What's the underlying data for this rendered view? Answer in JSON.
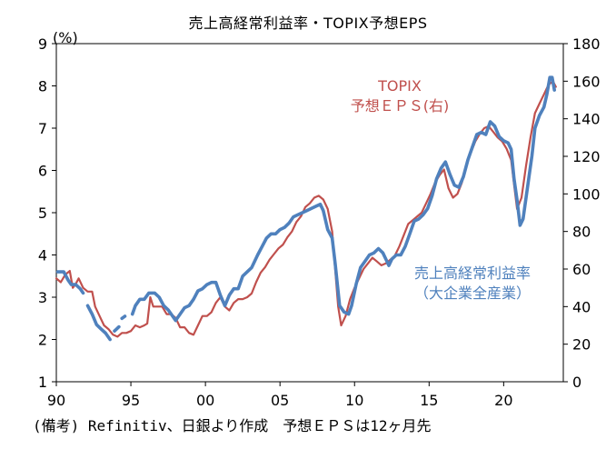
{
  "title": "売上高経常利益率・TOPIX予想EPS",
  "note": "(備考) Refinitiv、日銀より作成　予想ＥＰＳは12ヶ月先",
  "colors": {
    "profit": "#4f81bd",
    "eps": "#c0504d",
    "axis": "#000000"
  },
  "chart_data": {
    "type": "line",
    "title": "売上高経常利益率・TOPIX予想EPS",
    "ylabel_left": "(%)",
    "y_left_range": [
      1,
      9
    ],
    "y_left_ticks": [
      "1",
      "2",
      "3",
      "4",
      "5",
      "6",
      "7",
      "8",
      "9"
    ],
    "y_right_range": [
      0,
      180
    ],
    "y_right_ticks": [
      "0",
      "20",
      "40",
      "60",
      "80",
      "100",
      "120",
      "140",
      "160",
      "180"
    ],
    "x_range": [
      1990,
      2024
    ],
    "x_ticks": [
      {
        "value": 1990,
        "label": "90"
      },
      {
        "value": 1995,
        "label": "95"
      },
      {
        "value": 2000,
        "label": "00"
      },
      {
        "value": 2005,
        "label": "05"
      },
      {
        "value": 2010,
        "label": "10"
      },
      {
        "value": 2015,
        "label": "15"
      },
      {
        "value": 2020,
        "label": "20"
      }
    ],
    "series": [
      {
        "name": "売上高経常利益率(大企業全産業)",
        "label_line1": "売上高経常利益率",
        "label_line2": "（大企業全産業）",
        "axis": "left",
        "segments": [
          [
            [
              1990.1,
              3.6
            ],
            [
              1990.5,
              3.6
            ],
            [
              1990.8,
              3.4
            ],
            [
              1991.0,
              3.3
            ],
            [
              1991.3,
              3.3
            ],
            [
              1991.6,
              3.2
            ],
            [
              1991.8,
              3.1
            ]
          ],
          [
            [
              1992.1,
              2.8
            ],
            [
              1992.4,
              2.6
            ],
            [
              1992.7,
              2.35
            ],
            [
              1993.0,
              2.25
            ],
            [
              1993.3,
              2.15
            ],
            [
              1993.6,
              2.0
            ]
          ],
          [
            [
              1993.9,
              2.2
            ],
            [
              1994.2,
              2.3
            ]
          ],
          [
            [
              1994.4,
              2.5
            ],
            [
              1994.6,
              2.55
            ]
          ],
          [
            [
              1995.1,
              2.6
            ],
            [
              1995.3,
              2.8
            ],
            [
              1995.6,
              2.95
            ],
            [
              1995.9,
              2.95
            ],
            [
              1996.2,
              3.1
            ],
            [
              1996.6,
              3.1
            ],
            [
              1996.9,
              3.0
            ],
            [
              1997.2,
              2.8
            ],
            [
              1997.5,
              2.7
            ],
            [
              1997.8,
              2.55
            ],
            [
              1998.0,
              2.45
            ],
            [
              1998.3,
              2.6
            ],
            [
              1998.6,
              2.75
            ],
            [
              1998.9,
              2.8
            ],
            [
              1999.2,
              2.95
            ],
            [
              1999.5,
              3.15
            ],
            [
              1999.8,
              3.2
            ],
            [
              2000.1,
              3.3
            ],
            [
              2000.4,
              3.35
            ],
            [
              2000.7,
              3.35
            ],
            [
              2001.0,
              3.05
            ],
            [
              2001.3,
              2.8
            ],
            [
              2001.6,
              3.05
            ],
            [
              2001.9,
              3.2
            ],
            [
              2002.2,
              3.2
            ],
            [
              2002.5,
              3.5
            ],
            [
              2002.8,
              3.6
            ],
            [
              2003.1,
              3.7
            ],
            [
              2003.5,
              4.0
            ],
            [
              2003.8,
              4.2
            ],
            [
              2004.1,
              4.4
            ],
            [
              2004.4,
              4.5
            ],
            [
              2004.7,
              4.5
            ],
            [
              2005.0,
              4.6
            ],
            [
              2005.3,
              4.65
            ],
            [
              2005.6,
              4.75
            ],
            [
              2005.9,
              4.9
            ],
            [
              2006.2,
              4.95
            ],
            [
              2006.5,
              5.0
            ],
            [
              2006.8,
              5.05
            ],
            [
              2007.1,
              5.1
            ],
            [
              2007.4,
              5.15
            ],
            [
              2007.7,
              5.2
            ],
            [
              2007.9,
              5.05
            ],
            [
              2008.2,
              4.6
            ],
            [
              2008.5,
              4.4
            ],
            [
              2008.7,
              3.8
            ],
            [
              2009.0,
              2.8
            ],
            [
              2009.3,
              2.65
            ],
            [
              2009.6,
              2.6
            ],
            [
              2009.8,
              2.8
            ],
            [
              2010.1,
              3.3
            ],
            [
              2010.4,
              3.7
            ],
            [
              2010.7,
              3.85
            ],
            [
              2011.0,
              4.0
            ],
            [
              2011.3,
              4.05
            ],
            [
              2011.6,
              4.15
            ],
            [
              2011.9,
              4.05
            ],
            [
              2012.1,
              3.9
            ],
            [
              2012.3,
              3.75
            ],
            [
              2012.5,
              3.9
            ],
            [
              2012.8,
              4.0
            ],
            [
              2013.1,
              4.0
            ],
            [
              2013.4,
              4.2
            ],
            [
              2013.7,
              4.5
            ],
            [
              2014.0,
              4.8
            ],
            [
              2014.3,
              4.85
            ],
            [
              2014.6,
              4.95
            ],
            [
              2014.9,
              5.1
            ],
            [
              2015.2,
              5.4
            ],
            [
              2015.5,
              5.8
            ],
            [
              2015.8,
              6.05
            ],
            [
              2016.1,
              6.2
            ],
            [
              2016.4,
              5.9
            ],
            [
              2016.7,
              5.65
            ],
            [
              2017.0,
              5.6
            ],
            [
              2017.3,
              5.85
            ],
            [
              2017.6,
              6.25
            ],
            [
              2017.9,
              6.55
            ],
            [
              2018.2,
              6.85
            ],
            [
              2018.5,
              6.9
            ],
            [
              2018.8,
              6.85
            ],
            [
              2019.1,
              7.15
            ],
            [
              2019.4,
              7.05
            ],
            [
              2019.7,
              6.8
            ],
            [
              2020.0,
              6.7
            ],
            [
              2020.3,
              6.65
            ],
            [
              2020.5,
              6.5
            ],
            [
              2020.7,
              5.8
            ],
            [
              2020.9,
              5.3
            ],
            [
              2021.1,
              4.7
            ],
            [
              2021.3,
              4.85
            ],
            [
              2021.6,
              5.6
            ],
            [
              2021.9,
              6.35
            ],
            [
              2022.1,
              7.0
            ],
            [
              2022.4,
              7.3
            ],
            [
              2022.7,
              7.5
            ],
            [
              2022.9,
              7.8
            ],
            [
              2023.1,
              8.2
            ],
            [
              2023.25,
              8.2
            ],
            [
              2023.4,
              7.9
            ]
          ]
        ]
      },
      {
        "name": "TOPIX予想EPS(右)",
        "label_line1": "TOPIX",
        "label_line2": "予想ＥＰＳ(右)",
        "axis": "right",
        "segments": [
          [
            [
              1990.0,
              55
            ],
            [
              1990.3,
              53
            ],
            [
              1990.6,
              57
            ],
            [
              1990.9,
              59
            ],
            [
              1991.1,
              50
            ],
            [
              1991.3,
              52
            ],
            [
              1991.5,
              55
            ],
            [
              1991.8,
              50
            ],
            [
              1992.1,
              48
            ],
            [
              1992.4,
              48
            ],
            [
              1992.6,
              40
            ],
            [
              1992.9,
              35
            ],
            [
              1993.2,
              30
            ],
            [
              1993.5,
              28
            ],
            [
              1993.8,
              25
            ],
            [
              1994.1,
              24
            ],
            [
              1994.4,
              26
            ],
            [
              1994.7,
              26
            ],
            [
              1995.0,
              27
            ],
            [
              1995.3,
              30
            ],
            [
              1995.6,
              29
            ],
            [
              1995.9,
              30
            ],
            [
              1996.1,
              31
            ],
            [
              1996.3,
              45
            ],
            [
              1996.5,
              40
            ],
            [
              1996.8,
              40
            ],
            [
              1997.1,
              40
            ],
            [
              1997.4,
              36
            ],
            [
              1997.7,
              36
            ],
            [
              1998.0,
              34
            ],
            [
              1998.3,
              29
            ],
            [
              1998.6,
              29
            ],
            [
              1998.9,
              26
            ],
            [
              1999.2,
              25
            ],
            [
              1999.5,
              30
            ],
            [
              1999.8,
              35
            ],
            [
              2000.1,
              35
            ],
            [
              2000.4,
              37
            ],
            [
              2000.7,
              42
            ],
            [
              2001.0,
              45
            ],
            [
              2001.3,
              40
            ],
            [
              2001.6,
              38
            ],
            [
              2001.9,
              42
            ],
            [
              2002.2,
              44
            ],
            [
              2002.5,
              44
            ],
            [
              2002.8,
              45
            ],
            [
              2003.1,
              47
            ],
            [
              2003.4,
              53
            ],
            [
              2003.7,
              58
            ],
            [
              2004.0,
              61
            ],
            [
              2004.3,
              65
            ],
            [
              2004.6,
              68
            ],
            [
              2004.9,
              71
            ],
            [
              2005.2,
              73
            ],
            [
              2005.5,
              77
            ],
            [
              2005.8,
              80
            ],
            [
              2006.1,
              85
            ],
            [
              2006.4,
              88
            ],
            [
              2006.7,
              93
            ],
            [
              2007.0,
              95
            ],
            [
              2007.3,
              98
            ],
            [
              2007.6,
              99
            ],
            [
              2007.9,
              97
            ],
            [
              2008.2,
              92
            ],
            [
              2008.5,
              80
            ],
            [
              2008.7,
              60
            ],
            [
              2008.9,
              40
            ],
            [
              2009.1,
              30
            ],
            [
              2009.4,
              35
            ],
            [
              2009.7,
              44
            ],
            [
              2010.0,
              50
            ],
            [
              2010.3,
              55
            ],
            [
              2010.6,
              60
            ],
            [
              2010.9,
              63
            ],
            [
              2011.2,
              66
            ],
            [
              2011.5,
              64
            ],
            [
              2011.8,
              62
            ],
            [
              2012.1,
              63
            ],
            [
              2012.4,
              65
            ],
            [
              2012.7,
              67
            ],
            [
              2013.0,
              72
            ],
            [
              2013.3,
              78
            ],
            [
              2013.6,
              84
            ],
            [
              2013.9,
              86
            ],
            [
              2014.2,
              88
            ],
            [
              2014.5,
              90
            ],
            [
              2014.8,
              95
            ],
            [
              2015.1,
              100
            ],
            [
              2015.4,
              106
            ],
            [
              2015.7,
              110
            ],
            [
              2016.0,
              113
            ],
            [
              2016.3,
              103
            ],
            [
              2016.6,
              98
            ],
            [
              2016.9,
              100
            ],
            [
              2017.2,
              106
            ],
            [
              2017.5,
              115
            ],
            [
              2017.8,
              122
            ],
            [
              2018.1,
              128
            ],
            [
              2018.4,
              132
            ],
            [
              2018.7,
              135
            ],
            [
              2019.0,
              136
            ],
            [
              2019.3,
              133
            ],
            [
              2019.6,
              130
            ],
            [
              2019.9,
              128
            ],
            [
              2020.2,
              124
            ],
            [
              2020.5,
              118
            ],
            [
              2020.7,
              105
            ],
            [
              2020.9,
              92
            ],
            [
              2021.2,
              98
            ],
            [
              2021.5,
              115
            ],
            [
              2021.8,
              130
            ],
            [
              2022.1,
              143
            ],
            [
              2022.4,
              148
            ],
            [
              2022.7,
              153
            ],
            [
              2023.0,
              158
            ],
            [
              2023.3,
              160
            ],
            [
              2023.5,
              157
            ]
          ]
        ]
      }
    ]
  }
}
